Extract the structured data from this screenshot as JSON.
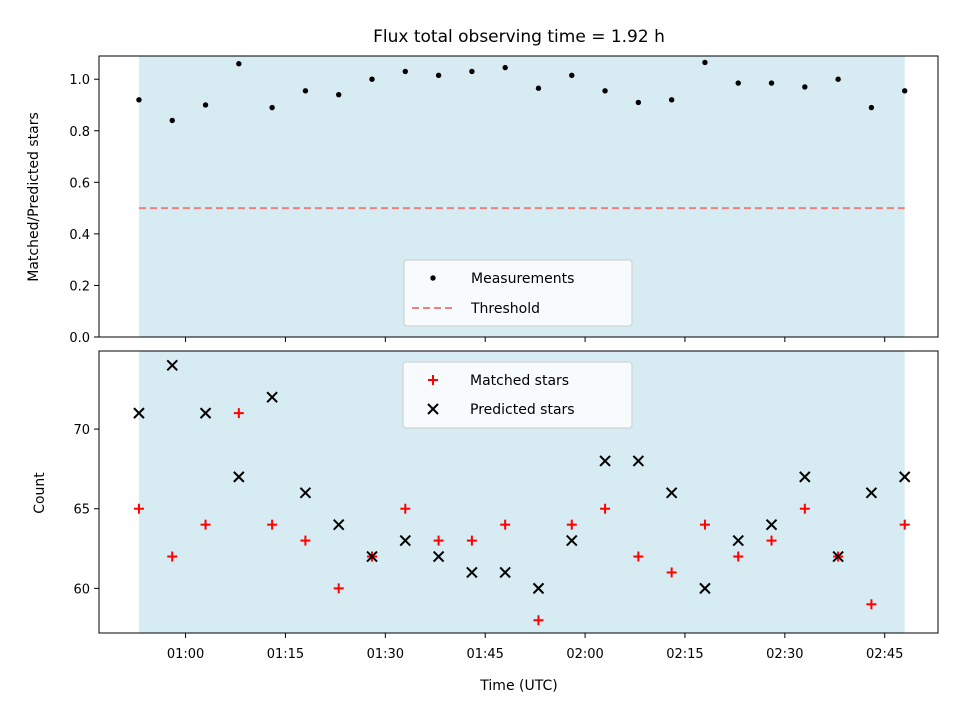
{
  "chart_data": [
    {
      "type": "scatter",
      "title": "Flux total observing time = 1.92 h",
      "xlabel": "",
      "ylabel": "Matched/Predicted stars",
      "ylim": [
        0.0,
        1.09
      ],
      "yticks": [
        0.0,
        0.2,
        0.4,
        0.6,
        0.8,
        1.0
      ],
      "ytick_labels": [
        "0.0",
        "0.2",
        "0.4",
        "0.6",
        "0.8",
        "1.0"
      ],
      "shaded_span_minutes": [
        53,
        168
      ],
      "threshold": 0.5,
      "series": [
        {
          "name": "Measurements",
          "marker": "dot",
          "color": "#000000",
          "x": [
            53,
            58,
            63,
            68,
            73,
            78,
            83,
            88,
            93,
            98,
            103,
            108,
            113,
            118,
            123,
            128,
            133,
            138,
            143,
            148,
            153,
            158,
            163,
            168
          ],
          "y": [
            0.92,
            0.84,
            0.9,
            1.06,
            0.89,
            0.955,
            0.94,
            1.0,
            1.03,
            1.015,
            1.03,
            1.045,
            0.965,
            1.015,
            0.955,
            0.91,
            0.92,
            1.065,
            0.985,
            0.985,
            0.97,
            1.0,
            0.89,
            0.955
          ]
        },
        {
          "name": "Threshold",
          "marker": "dashed-line",
          "color": "#f08080",
          "x": [
            53,
            168
          ],
          "y": [
            0.5,
            0.5
          ]
        }
      ],
      "legend": {
        "location": "lower-center",
        "entries": [
          "Measurements",
          "Threshold"
        ]
      }
    },
    {
      "type": "scatter",
      "title": "",
      "xlabel": "Time (UTC)",
      "ylabel": "Count",
      "ylim": [
        57.2,
        74.9
      ],
      "yticks": [
        60,
        65,
        70
      ],
      "ytick_labels": [
        "60",
        "65",
        "70"
      ],
      "xlim_minutes": [
        47,
        173
      ],
      "xticks_minutes": [
        60,
        75,
        90,
        105,
        120,
        135,
        150,
        165
      ],
      "xtick_labels": [
        "01:00",
        "01:15",
        "01:30",
        "01:45",
        "02:00",
        "02:15",
        "02:30",
        "02:45"
      ],
      "shaded_span_minutes": [
        53,
        168
      ],
      "series": [
        {
          "name": "Matched stars",
          "marker": "plus",
          "color": "#ff0000",
          "x": [
            53,
            58,
            63,
            68,
            73,
            78,
            83,
            88,
            93,
            98,
            103,
            108,
            113,
            118,
            123,
            128,
            133,
            138,
            143,
            148,
            153,
            158,
            163,
            168
          ],
          "y": [
            65,
            62,
            64,
            71,
            64,
            63,
            60,
            62,
            65,
            63,
            63,
            64,
            58,
            64,
            65,
            62,
            61,
            64,
            62,
            63,
            65,
            62,
            59,
            64
          ]
        },
        {
          "name": "Predicted stars",
          "marker": "x",
          "color": "#000000",
          "x": [
            53,
            58,
            63,
            68,
            73,
            78,
            83,
            88,
            93,
            98,
            103,
            108,
            113,
            118,
            123,
            128,
            133,
            138,
            143,
            148,
            153,
            158,
            163,
            168
          ],
          "y": [
            71,
            74,
            71,
            67,
            72,
            66,
            64,
            62,
            63,
            62,
            61,
            61,
            60,
            63,
            68,
            68,
            66,
            60,
            63,
            64,
            67,
            62,
            66,
            67
          ]
        }
      ],
      "legend": {
        "location": "upper-center",
        "entries": [
          "Matched stars",
          "Predicted stars"
        ]
      }
    }
  ],
  "colors": {
    "shade": "#add8e6",
    "threshold": "#f08080",
    "matched": "#ff0000",
    "predicted": "#000000",
    "measurement": "#000000"
  }
}
